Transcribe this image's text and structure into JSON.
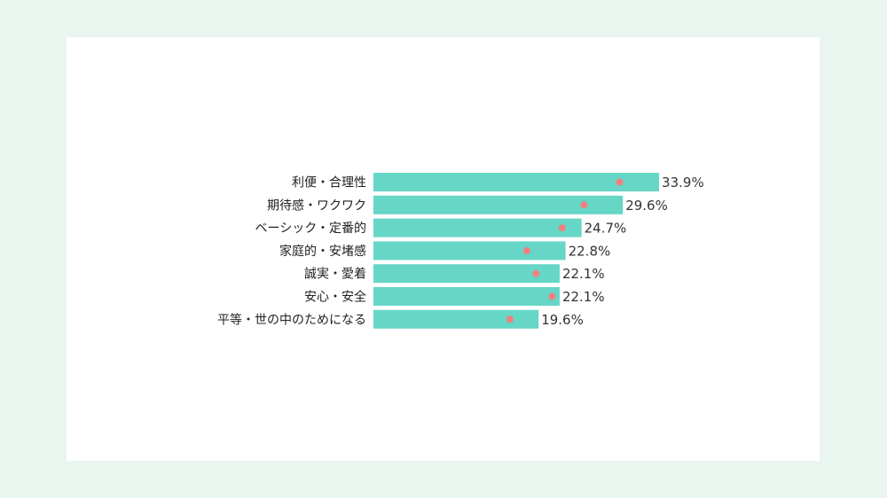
{
  "chart_data": {
    "type": "bar",
    "orientation": "horizontal",
    "categories": [
      "利便・合理性",
      "期待感・ワクワク",
      "ベーシック・定番的",
      "家庭的・安堵感",
      "誠実・愛着",
      "安心・安全",
      "平等・世の中のためになる"
    ],
    "series": [
      {
        "values": [
          33.9,
          29.6,
          24.7,
          22.8,
          22.1,
          22.1,
          19.6
        ],
        "value_labels": [
          "33.9%",
          "29.6%",
          "24.7%",
          "22.8%",
          "22.1%",
          "22.1%",
          "19.6%"
        ],
        "color": "#66d6c6"
      },
      {
        "type": "scatter",
        "values": [
          29.2,
          25.0,
          22.4,
          18.2,
          19.3,
          21.2,
          16.2
        ],
        "color": "#f08080"
      }
    ],
    "xlim": [
      0,
      100
    ],
    "grid": false,
    "legend": "none",
    "title": "",
    "xlabel": "",
    "ylabel": ""
  }
}
